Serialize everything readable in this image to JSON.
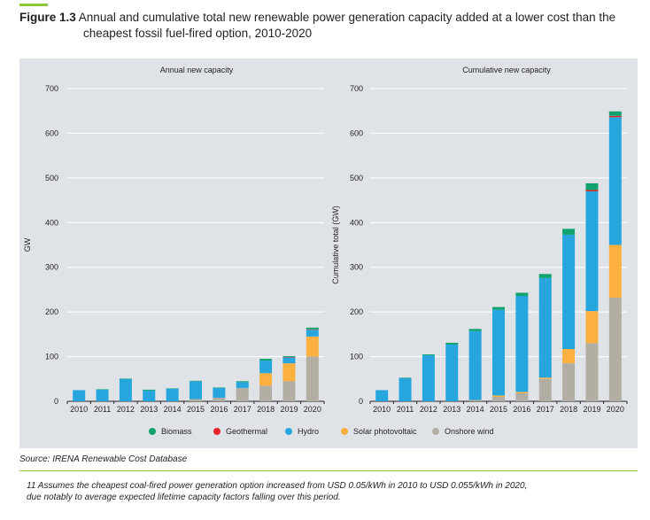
{
  "figure": {
    "number": "Figure 1.3",
    "title_line1": "Annual and cumulative total new renewable power generation capacity added at a lower cost than the",
    "title_line2": "cheapest fossil fuel-fired option, 2010-2020"
  },
  "source": "Source: IRENA Renewable Cost Database",
  "footnote": {
    "line1": "11 Assumes the cheapest coal-fired power generation option increased from USD 0.05/kWh in 2010 to USD 0.055/kWh in 2020,",
    "line2": "due notably to average expected lifetime capacity factors falling over this period."
  },
  "colors": {
    "Biomass": "#11a36e",
    "Geothermal": "#e6262c",
    "Hydro": "#27a6de",
    "Solar photovoltaic": "#fbb040",
    "Onshore wind": "#b3aea3"
  },
  "chart_data": [
    {
      "type": "bar",
      "stacked": true,
      "title": "Annual new capacity",
      "ylabel": "GW",
      "xlabel": "",
      "ylim": [
        0,
        700
      ],
      "yticks": [
        0,
        100,
        200,
        300,
        400,
        500,
        600,
        700
      ],
      "grid": true,
      "categories": [
        "2010",
        "2011",
        "2012",
        "2013",
        "2014",
        "2015",
        "2016",
        "2017",
        "2018",
        "2019",
        "2020"
      ],
      "series": [
        {
          "name": "Onshore wind",
          "values": [
            0,
            0,
            0,
            0,
            0,
            5,
            8,
            30,
            35,
            45,
            100
          ]
        },
        {
          "name": "Solar photovoltaic",
          "values": [
            0,
            0,
            0,
            0,
            0,
            0,
            0,
            0,
            28,
            40,
            45
          ]
        },
        {
          "name": "Hydro",
          "values": [
            25,
            26,
            50,
            24,
            28,
            40,
            22,
            13,
            28,
            13,
            15
          ]
        },
        {
          "name": "Geothermal",
          "values": [
            0,
            0,
            0,
            0,
            0,
            0,
            0,
            0,
            0,
            1,
            1
          ]
        },
        {
          "name": "Biomass",
          "values": [
            0,
            1,
            1,
            2,
            1,
            1,
            1,
            2,
            4,
            2,
            4
          ]
        }
      ]
    },
    {
      "type": "bar",
      "stacked": true,
      "title": "Cumulative new capacity",
      "ylabel": "Cumulative total (GW)",
      "xlabel": "",
      "ylim": [
        0,
        700
      ],
      "yticks": [
        0,
        100,
        200,
        300,
        400,
        500,
        600,
        700
      ],
      "grid": true,
      "categories": [
        "2010",
        "2011",
        "2012",
        "2013",
        "2014",
        "2015",
        "2016",
        "2017",
        "2018",
        "2019",
        "2020"
      ],
      "series": [
        {
          "name": "Onshore wind",
          "values": [
            0,
            0,
            0,
            0,
            3,
            10,
            18,
            50,
            85,
            130,
            232
          ]
        },
        {
          "name": "Solar photovoltaic",
          "values": [
            0,
            0,
            0,
            0,
            0,
            3,
            3,
            3,
            32,
            72,
            118
          ]
        },
        {
          "name": "Hydro",
          "values": [
            25,
            52,
            103,
            127,
            154,
            192,
            215,
            223,
            256,
            268,
            286
          ]
        },
        {
          "name": "Geothermal",
          "values": [
            0,
            0,
            0,
            0,
            0,
            0,
            0,
            0,
            0,
            3,
            3
          ]
        },
        {
          "name": "Biomass",
          "values": [
            0,
            1,
            2,
            4,
            5,
            6,
            7,
            9,
            13,
            15,
            10
          ]
        }
      ]
    }
  ],
  "legend": {
    "items": [
      "Biomass",
      "Geothermal",
      "Hydro",
      "Solar photovoltaic",
      "Onshore wind"
    ]
  }
}
